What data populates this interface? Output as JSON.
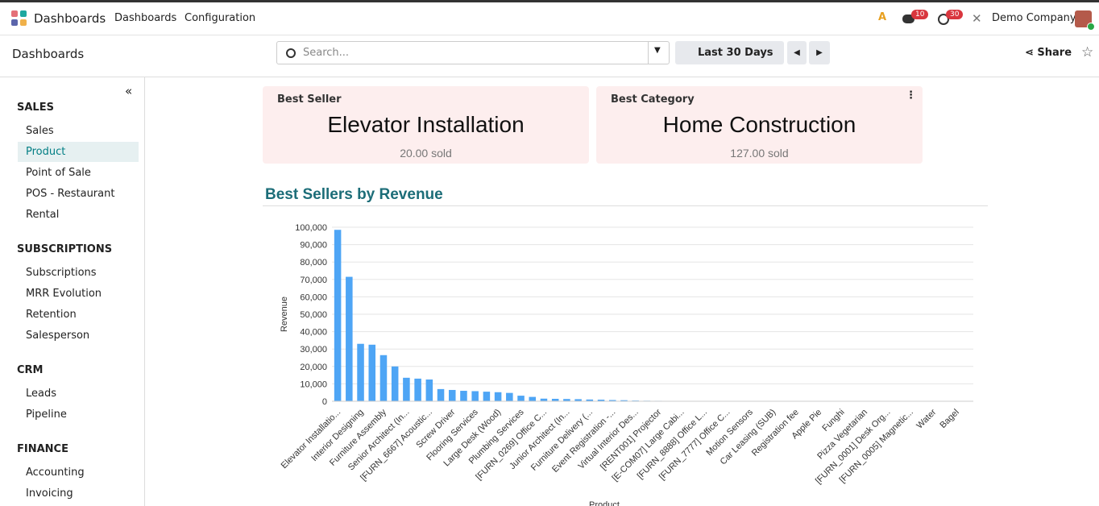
{
  "navbar": {
    "app": "Dashboards",
    "menus": [
      "Dashboards",
      "Configuration"
    ],
    "badges": [
      "10",
      "30"
    ],
    "company": "Demo Company"
  },
  "control_panel": {
    "breadcrumb": "Dashboards",
    "search_placeholder": "Search...",
    "period": "Last 30 Days",
    "share": "Share"
  },
  "sidebar": [
    {
      "title": "SALES",
      "items": [
        "Sales",
        "Product",
        "Point of Sale",
        "POS - Restaurant",
        "Rental"
      ]
    },
    {
      "title": "SUBSCRIPTIONS",
      "items": [
        "Subscriptions",
        "MRR Evolution",
        "Retention",
        "Salesperson"
      ]
    },
    {
      "title": "CRM",
      "items": [
        "Leads",
        "Pipeline"
      ]
    },
    {
      "title": "FINANCE",
      "items": [
        "Accounting",
        "Invoicing"
      ]
    }
  ],
  "cards": [
    {
      "label": "Best Seller",
      "value": "Elevator Installation",
      "detail": "20.00 sold"
    },
    {
      "label": "Best Category",
      "value": "Home Construction",
      "detail": "127.00 sold"
    }
  ],
  "section_title": "Best Sellers by Revenue",
  "chart_data": {
    "type": "bar",
    "x_label": "Product",
    "y_label": "Revenue",
    "color": "#4ea5f5",
    "grid": true,
    "categories": [
      "Elevator Installatio...",
      null,
      "Interior Designing",
      null,
      "Furniture Assembly",
      null,
      "Senior Architect (In...",
      null,
      "[FURN_6667] Acoustic...",
      null,
      "Screw Driver",
      null,
      "Flooring Services",
      null,
      "Large Desk (Wood)",
      null,
      "Plumbing Services",
      null,
      "[FURN_0269] Office C...",
      null,
      "Junior Architect (In...",
      null,
      "Furniture Delivery (...",
      null,
      "Event Registration -...",
      null,
      "Virtual Interior Des...",
      null,
      "[RENT001] Projector",
      null,
      "[E-COM07] Large Cabi...",
      null,
      "[FURN_8888] Office L...",
      null,
      "[FURN_7777] Office C...",
      null,
      "Motion Sensors",
      null,
      "Car Leasing (SUB)",
      null,
      "Registration fee",
      null,
      "Apple Pie",
      null,
      "Funghi",
      null,
      "Pizza Vegetarian",
      null,
      "[FURN_0001] Desk Org...",
      null,
      "[FURN_0005] Magnetic...",
      null,
      "Water",
      null,
      "Bagel",
      null
    ],
    "values": [
      98500,
      71500,
      33000,
      32500,
      26500,
      20000,
      13500,
      13000,
      12500,
      7000,
      6500,
      6000,
      5800,
      5500,
      5200,
      4800,
      3200,
      2500,
      1500,
      1400,
      1300,
      1200,
      1000,
      900,
      700,
      600,
      400,
      300,
      250,
      200,
      180,
      150,
      120,
      100,
      90,
      80,
      70,
      60,
      50,
      40,
      35,
      30,
      25,
      20,
      18,
      15,
      12,
      10,
      8,
      6,
      5,
      4,
      3,
      2,
      1,
      1
    ],
    "ylim": [
      0,
      100000
    ],
    "yticks": [
      0,
      {
        "value": 10000,
        "label": "10,000"
      },
      {
        "value": 20000,
        "label": "20,000"
      },
      {
        "value": 30000,
        "label": "30,000"
      },
      {
        "value": 40000,
        "label": "40,000"
      },
      {
        "value": 50000,
        "label": "50,000"
      },
      {
        "value": 60000,
        "label": "60,000"
      },
      {
        "value": 70000,
        "label": "70,000"
      },
      {
        "value": 80000,
        "label": "80,000"
      },
      {
        "value": 90000,
        "label": "90,000"
      },
      {
        "value": 100000,
        "label": "100,000"
      }
    ]
  }
}
